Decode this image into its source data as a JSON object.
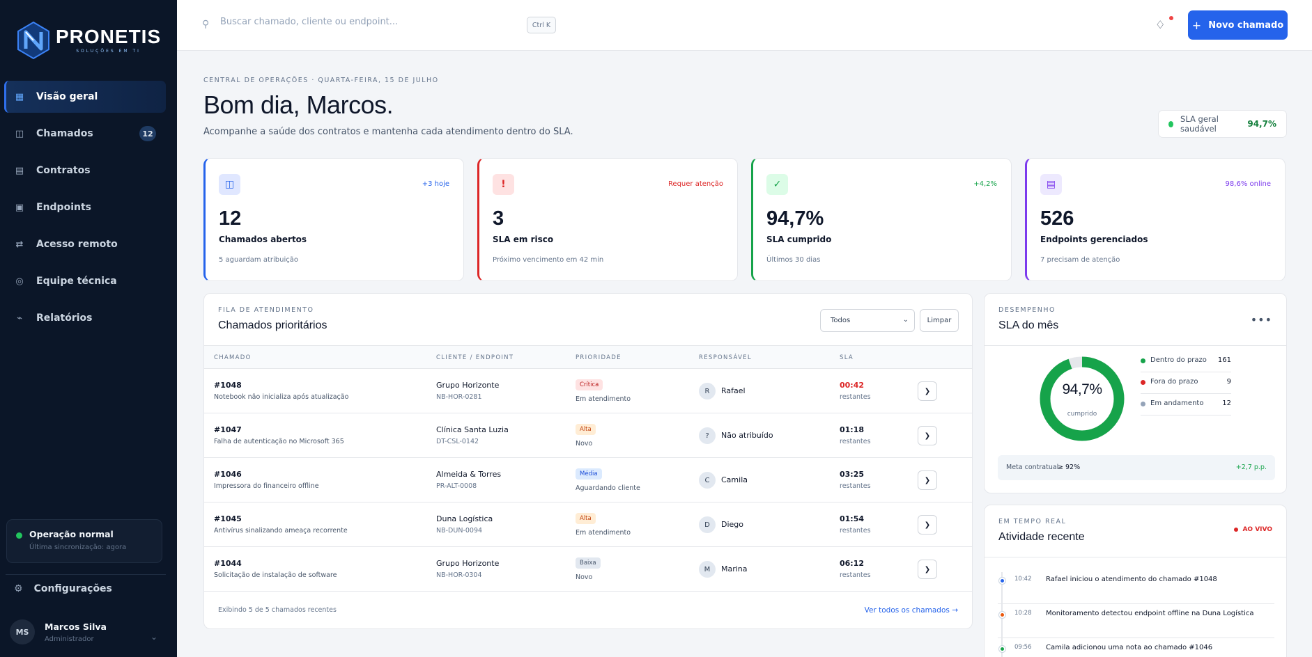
{
  "brand": {
    "name": "PRONETIS",
    "tagline": "SOLUÇÕES EM TI"
  },
  "sidebar": {
    "items": [
      {
        "label": "Visão geral",
        "icon": "grid-icon",
        "active": true
      },
      {
        "label": "Chamados",
        "icon": "columns-icon",
        "badge": "12"
      },
      {
        "label": "Contratos",
        "icon": "document-icon"
      },
      {
        "label": "Endpoints",
        "icon": "monitor-icon"
      },
      {
        "label": "Acesso remoto",
        "icon": "arrows-icon"
      },
      {
        "label": "Equipe técnica",
        "icon": "team-icon"
      },
      {
        "label": "Relatórios",
        "icon": "chart-icon"
      }
    ],
    "status": {
      "title": "Operação normal",
      "subtitle": "Última sincronização: agora"
    },
    "settings_label": "Configurações",
    "user": {
      "initials": "MS",
      "name": "Marcos Silva",
      "role": "Administrador"
    }
  },
  "topbar": {
    "search_placeholder": "Buscar chamado, cliente ou endpoint...",
    "shortcut": "Ctrl K",
    "new_button": "Novo chamado"
  },
  "header": {
    "eyebrow": "CENTRAL DE OPERAÇÕES · QUARTA-FEIRA, 15 DE JULHO",
    "greeting": "Bom dia, Marcos.",
    "subtitle": "Acompanhe a saúde dos contratos e mantenha cada atendimento dentro do SLA.",
    "sla_label": "SLA geral saudável",
    "sla_value": "94,7%"
  },
  "kpis": [
    {
      "value": "12",
      "label": "Chamados abertos",
      "sub": "5 aguardam atribuição",
      "tag": "+3 hoje",
      "icon": "columns-icon",
      "color": "#2563eb"
    },
    {
      "value": "3",
      "label": "SLA em risco",
      "sub": "Próximo vencimento em 42 min",
      "tag": "Requer atenção",
      "icon": "alert-icon",
      "color": "#dc2626"
    },
    {
      "value": "94,7%",
      "label": "SLA cumprido",
      "sub": "Últimos 30 dias",
      "tag": "+4,2%",
      "icon": "check-icon",
      "color": "#16a34a"
    },
    {
      "value": "526",
      "label": "Endpoints gerenciados",
      "sub": "7 precisam de atenção",
      "tag": "98,6% online",
      "icon": "server-icon",
      "color": "#7c3aed"
    }
  ],
  "queue": {
    "eyebrow": "FILA DE ATENDIMENTO",
    "title": "Chamados prioritários",
    "filter": "Todos",
    "clear": "Limpar",
    "columns": [
      "CHAMADO",
      "CLIENTE / ENDPOINT",
      "PRIORIDADE",
      "RESPONSÁVEL",
      "SLA"
    ],
    "rows": [
      {
        "id": "#1048",
        "desc": "Notebook não inicializa após atualização",
        "client": "Grupo Horizonte",
        "code": "NB-HOR-0281",
        "priority": "Crítica",
        "status": "Em atendimento",
        "initial": "R",
        "owner": "Rafael",
        "sla": "00:42",
        "rest": "restantes",
        "urgent": true
      },
      {
        "id": "#1047",
        "desc": "Falha de autenticação no Microsoft 365",
        "client": "Clínica Santa Luzia",
        "code": "DT-CSL-0142",
        "priority": "Alta",
        "status": "Novo",
        "initial": "?",
        "owner": "Não atribuído",
        "sla": "01:18",
        "rest": "restantes"
      },
      {
        "id": "#1046",
        "desc": "Impressora do financeiro offline",
        "client": "Almeida & Torres",
        "code": "PR-ALT-0008",
        "priority": "Média",
        "status": "Aguardando cliente",
        "initial": "C",
        "owner": "Camila",
        "sla": "03:25",
        "rest": "restantes"
      },
      {
        "id": "#1045",
        "desc": "Antivírus sinalizando ameaça recorrente",
        "client": "Duna Logística",
        "code": "NB-DUN-0094",
        "priority": "Alta",
        "status": "Em atendimento",
        "initial": "D",
        "owner": "Diego",
        "sla": "01:54",
        "rest": "restantes"
      },
      {
        "id": "#1044",
        "desc": "Solicitação de instalação de software",
        "client": "Grupo Horizonte",
        "code": "NB-HOR-0304",
        "priority": "Baixa",
        "status": "Novo",
        "initial": "M",
        "owner": "Marina",
        "sla": "06:12",
        "rest": "restantes"
      }
    ],
    "footer": "Exibindo 5 de 5 chamados recentes",
    "link": "Ver todos os chamados →"
  },
  "performance": {
    "eyebrow": "DESEMPENHO",
    "title": "SLA do mês",
    "value": "94,7%",
    "value_fraction": 0.947,
    "value_label": "cumprido",
    "legend": [
      {
        "label": "Dentro do prazo",
        "value": "161",
        "color": "#16a34a"
      },
      {
        "label": "Fora do prazo",
        "value": "9",
        "color": "#dc2626"
      },
      {
        "label": "Em andamento",
        "value": "12",
        "color": "#94a3b8"
      }
    ],
    "meta_label": "Meta contratual",
    "meta_value": "≥ 92%",
    "meta_delta": "+2,7 p.p."
  },
  "activity": {
    "eyebrow": "EM TEMPO REAL",
    "title": "Atividade recente",
    "live": "AO VIVO",
    "events": [
      {
        "time": "10:42",
        "text": "Rafael iniciou o atendimento do chamado #1048",
        "color": "#2563eb"
      },
      {
        "time": "10:28",
        "text": "Monitoramento detectou endpoint offline na Duna Logística",
        "color": "#ea580c"
      },
      {
        "time": "09:56",
        "text": "Camila adicionou uma nota ao chamado #1046",
        "color": "#16a34a"
      }
    ]
  }
}
